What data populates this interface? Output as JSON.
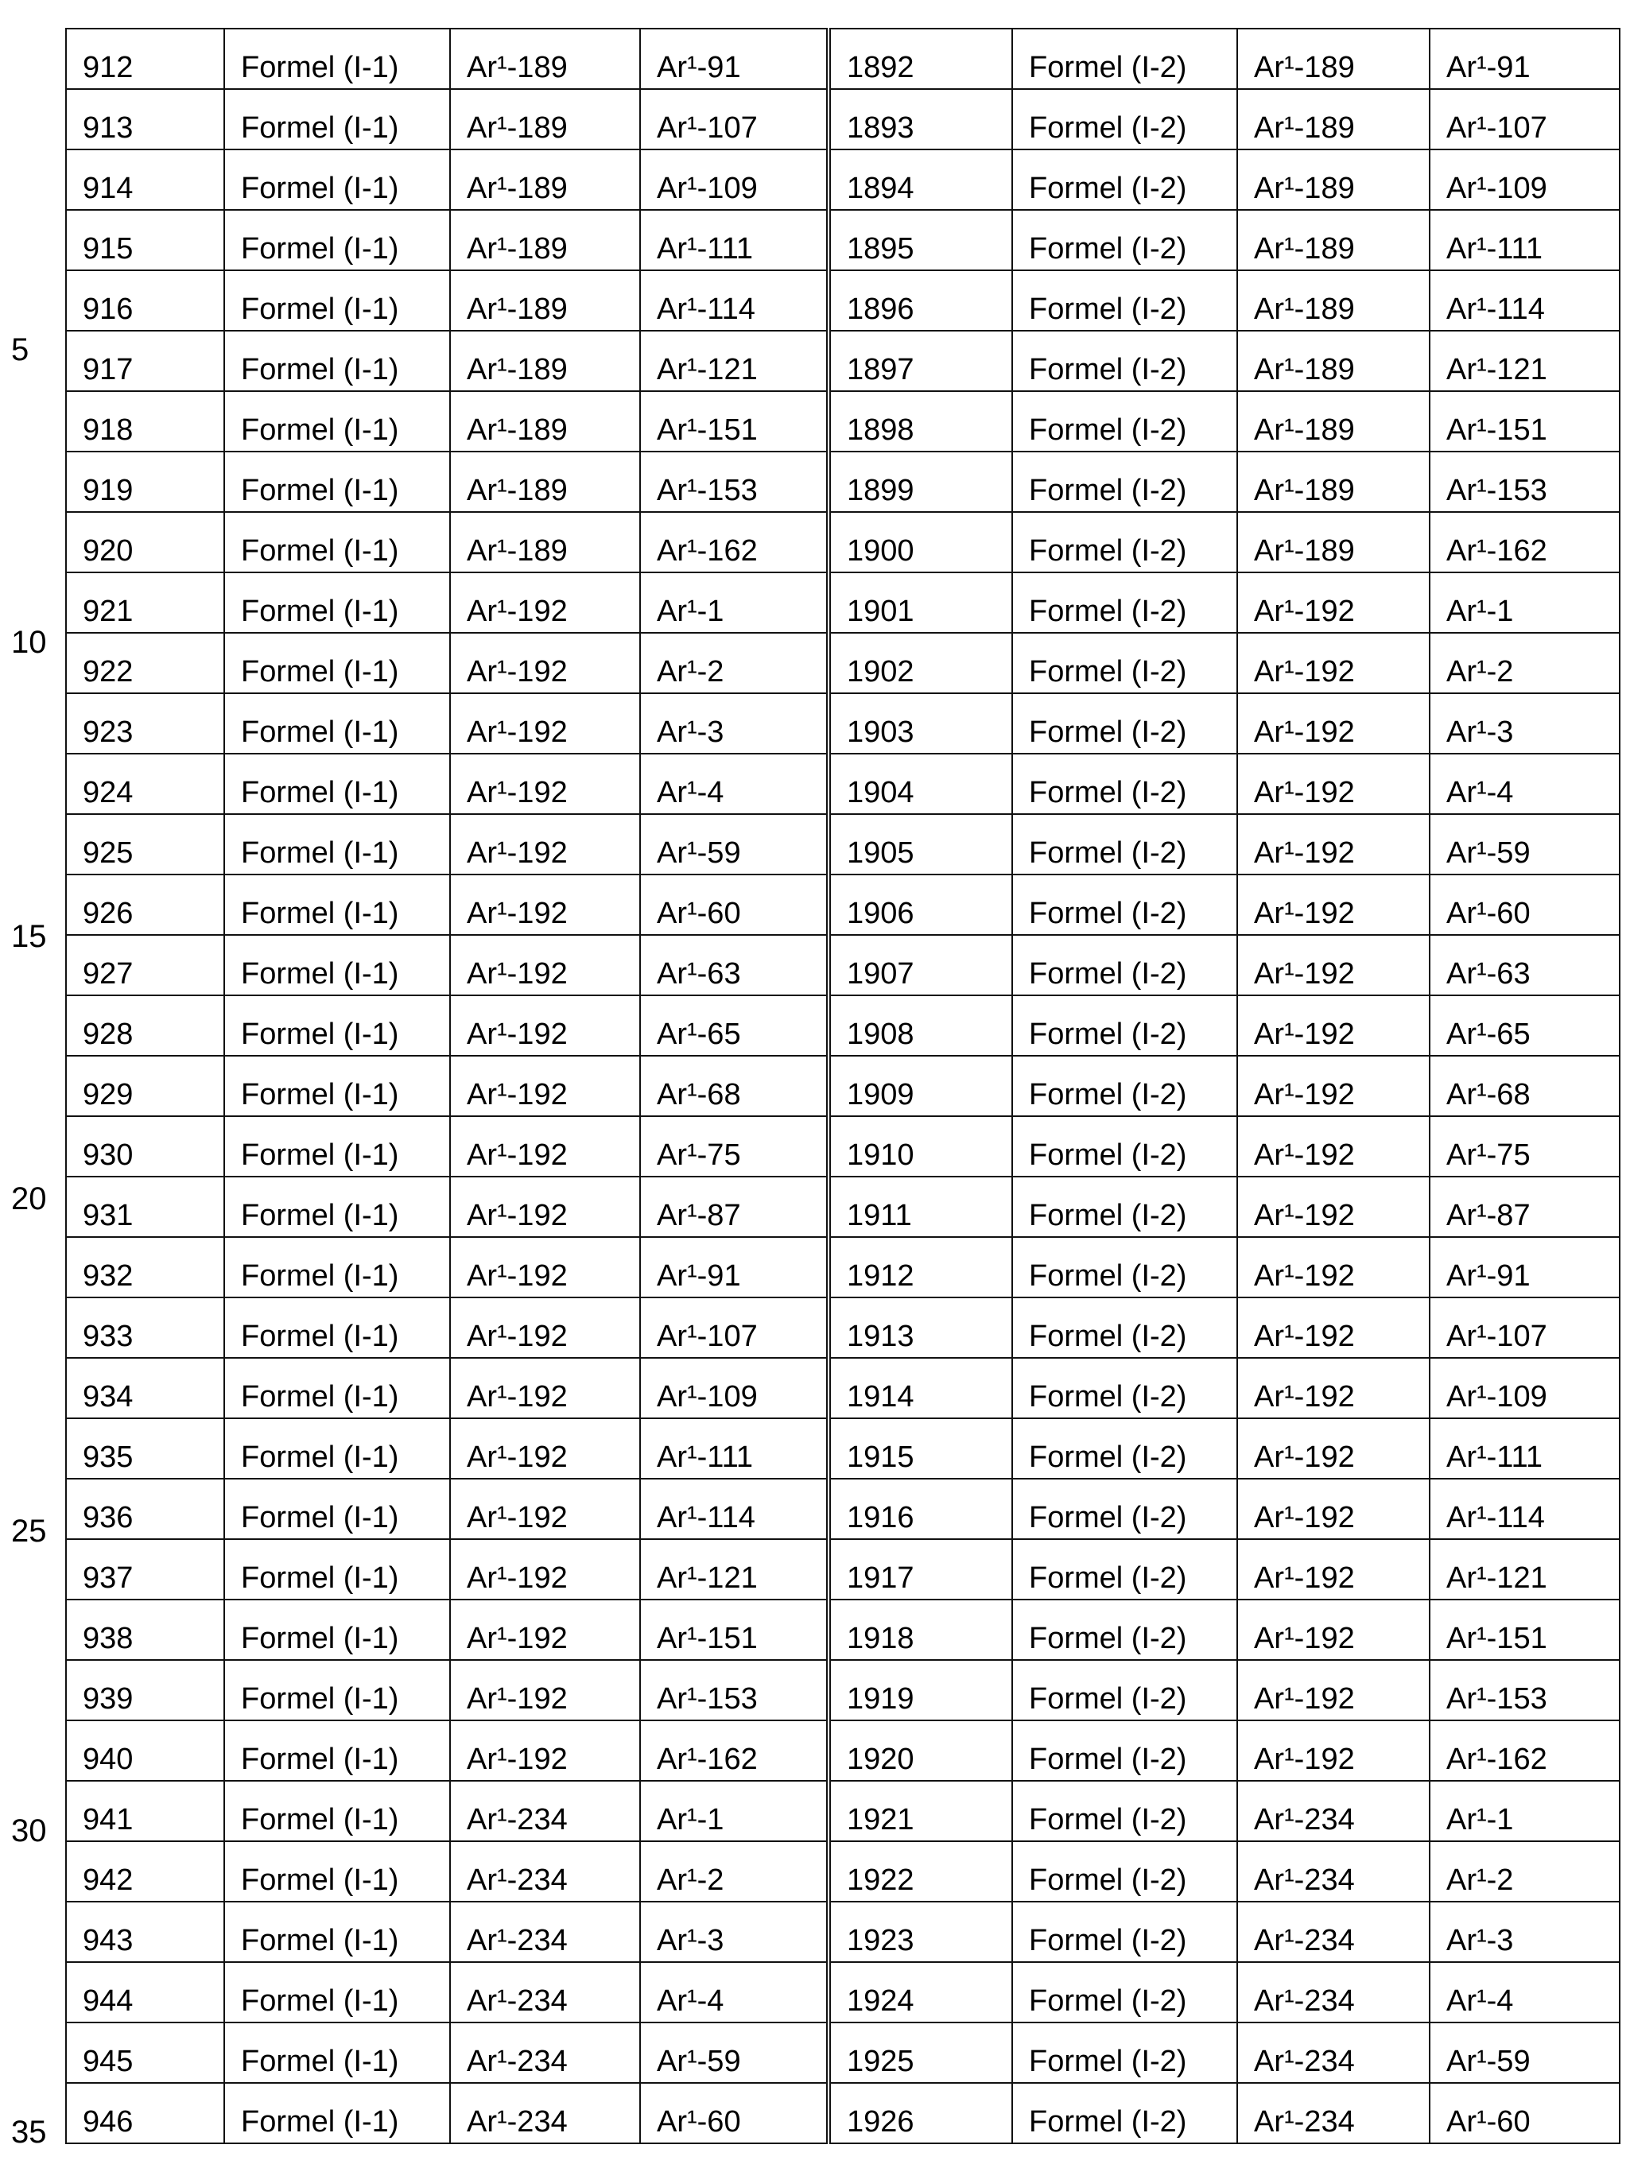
{
  "line_numbers": [
    "5",
    "10",
    "15",
    "20",
    "25",
    "30",
    "35"
  ],
  "rows": [
    [
      "912",
      "Formel (I-1)",
      "Ar¹-189",
      "Ar¹-91",
      "1892",
      "Formel (I-2)",
      "Ar¹-189",
      "Ar¹-91"
    ],
    [
      "913",
      "Formel (I-1)",
      "Ar¹-189",
      "Ar¹-107",
      "1893",
      "Formel (I-2)",
      "Ar¹-189",
      "Ar¹-107"
    ],
    [
      "914",
      "Formel (I-1)",
      "Ar¹-189",
      "Ar¹-109",
      "1894",
      "Formel (I-2)",
      "Ar¹-189",
      "Ar¹-109"
    ],
    [
      "915",
      "Formel (I-1)",
      "Ar¹-189",
      "Ar¹-111",
      "1895",
      "Formel (I-2)",
      "Ar¹-189",
      "Ar¹-111"
    ],
    [
      "916",
      "Formel (I-1)",
      "Ar¹-189",
      "Ar¹-114",
      "1896",
      "Formel (I-2)",
      "Ar¹-189",
      "Ar¹-114"
    ],
    [
      "917",
      "Formel (I-1)",
      "Ar¹-189",
      "Ar¹-121",
      "1897",
      "Formel (I-2)",
      "Ar¹-189",
      "Ar¹-121"
    ],
    [
      "918",
      "Formel (I-1)",
      "Ar¹-189",
      "Ar¹-151",
      "1898",
      "Formel (I-2)",
      "Ar¹-189",
      "Ar¹-151"
    ],
    [
      "919",
      "Formel (I-1)",
      "Ar¹-189",
      "Ar¹-153",
      "1899",
      "Formel (I-2)",
      "Ar¹-189",
      "Ar¹-153"
    ],
    [
      "920",
      "Formel (I-1)",
      "Ar¹-189",
      "Ar¹-162",
      "1900",
      "Formel (I-2)",
      "Ar¹-189",
      "Ar¹-162"
    ],
    [
      "921",
      "Formel (I-1)",
      "Ar¹-192",
      "Ar¹-1",
      "1901",
      "Formel (I-2)",
      "Ar¹-192",
      "Ar¹-1"
    ],
    [
      "922",
      "Formel (I-1)",
      "Ar¹-192",
      "Ar¹-2",
      "1902",
      "Formel (I-2)",
      "Ar¹-192",
      "Ar¹-2"
    ],
    [
      "923",
      "Formel (I-1)",
      "Ar¹-192",
      "Ar¹-3",
      "1903",
      "Formel (I-2)",
      "Ar¹-192",
      "Ar¹-3"
    ],
    [
      "924",
      "Formel (I-1)",
      "Ar¹-192",
      "Ar¹-4",
      "1904",
      "Formel (I-2)",
      "Ar¹-192",
      "Ar¹-4"
    ],
    [
      "925",
      "Formel (I-1)",
      "Ar¹-192",
      "Ar¹-59",
      "1905",
      "Formel (I-2)",
      "Ar¹-192",
      "Ar¹-59"
    ],
    [
      "926",
      "Formel (I-1)",
      "Ar¹-192",
      "Ar¹-60",
      "1906",
      "Formel (I-2)",
      "Ar¹-192",
      "Ar¹-60"
    ],
    [
      "927",
      "Formel (I-1)",
      "Ar¹-192",
      "Ar¹-63",
      "1907",
      "Formel (I-2)",
      "Ar¹-192",
      "Ar¹-63"
    ],
    [
      "928",
      "Formel (I-1)",
      "Ar¹-192",
      "Ar¹-65",
      "1908",
      "Formel (I-2)",
      "Ar¹-192",
      "Ar¹-65"
    ],
    [
      "929",
      "Formel (I-1)",
      "Ar¹-192",
      "Ar¹-68",
      "1909",
      "Formel (I-2)",
      "Ar¹-192",
      "Ar¹-68"
    ],
    [
      "930",
      "Formel (I-1)",
      "Ar¹-192",
      "Ar¹-75",
      "1910",
      "Formel (I-2)",
      "Ar¹-192",
      "Ar¹-75"
    ],
    [
      "931",
      "Formel (I-1)",
      "Ar¹-192",
      "Ar¹-87",
      "1911",
      "Formel (I-2)",
      "Ar¹-192",
      "Ar¹-87"
    ],
    [
      "932",
      "Formel (I-1)",
      "Ar¹-192",
      "Ar¹-91",
      "1912",
      "Formel (I-2)",
      "Ar¹-192",
      "Ar¹-91"
    ],
    [
      "933",
      "Formel (I-1)",
      "Ar¹-192",
      "Ar¹-107",
      "1913",
      "Formel (I-2)",
      "Ar¹-192",
      "Ar¹-107"
    ],
    [
      "934",
      "Formel (I-1)",
      "Ar¹-192",
      "Ar¹-109",
      "1914",
      "Formel (I-2)",
      "Ar¹-192",
      "Ar¹-109"
    ],
    [
      "935",
      "Formel (I-1)",
      "Ar¹-192",
      "Ar¹-111",
      "1915",
      "Formel (I-2)",
      "Ar¹-192",
      "Ar¹-111"
    ],
    [
      "936",
      "Formel (I-1)",
      "Ar¹-192",
      "Ar¹-114",
      "1916",
      "Formel (I-2)",
      "Ar¹-192",
      "Ar¹-114"
    ],
    [
      "937",
      "Formel (I-1)",
      "Ar¹-192",
      "Ar¹-121",
      "1917",
      "Formel (I-2)",
      "Ar¹-192",
      "Ar¹-121"
    ],
    [
      "938",
      "Formel (I-1)",
      "Ar¹-192",
      "Ar¹-151",
      "1918",
      "Formel (I-2)",
      "Ar¹-192",
      "Ar¹-151"
    ],
    [
      "939",
      "Formel (I-1)",
      "Ar¹-192",
      "Ar¹-153",
      "1919",
      "Formel (I-2)",
      "Ar¹-192",
      "Ar¹-153"
    ],
    [
      "940",
      "Formel (I-1)",
      "Ar¹-192",
      "Ar¹-162",
      "1920",
      "Formel (I-2)",
      "Ar¹-192",
      "Ar¹-162"
    ],
    [
      "941",
      "Formel (I-1)",
      "Ar¹-234",
      "Ar¹-1",
      "1921",
      "Formel (I-2)",
      "Ar¹-234",
      "Ar¹-1"
    ],
    [
      "942",
      "Formel (I-1)",
      "Ar¹-234",
      "Ar¹-2",
      "1922",
      "Formel (I-2)",
      "Ar¹-234",
      "Ar¹-2"
    ],
    [
      "943",
      "Formel (I-1)",
      "Ar¹-234",
      "Ar¹-3",
      "1923",
      "Formel (I-2)",
      "Ar¹-234",
      "Ar¹-3"
    ],
    [
      "944",
      "Formel (I-1)",
      "Ar¹-234",
      "Ar¹-4",
      "1924",
      "Formel (I-2)",
      "Ar¹-234",
      "Ar¹-4"
    ],
    [
      "945",
      "Formel (I-1)",
      "Ar¹-234",
      "Ar¹-59",
      "1925",
      "Formel (I-2)",
      "Ar¹-234",
      "Ar¹-59"
    ],
    [
      "946",
      "Formel (I-1)",
      "Ar¹-234",
      "Ar¹-60",
      "1926",
      "Formel (I-2)",
      "Ar¹-234",
      "Ar¹-60"
    ]
  ]
}
